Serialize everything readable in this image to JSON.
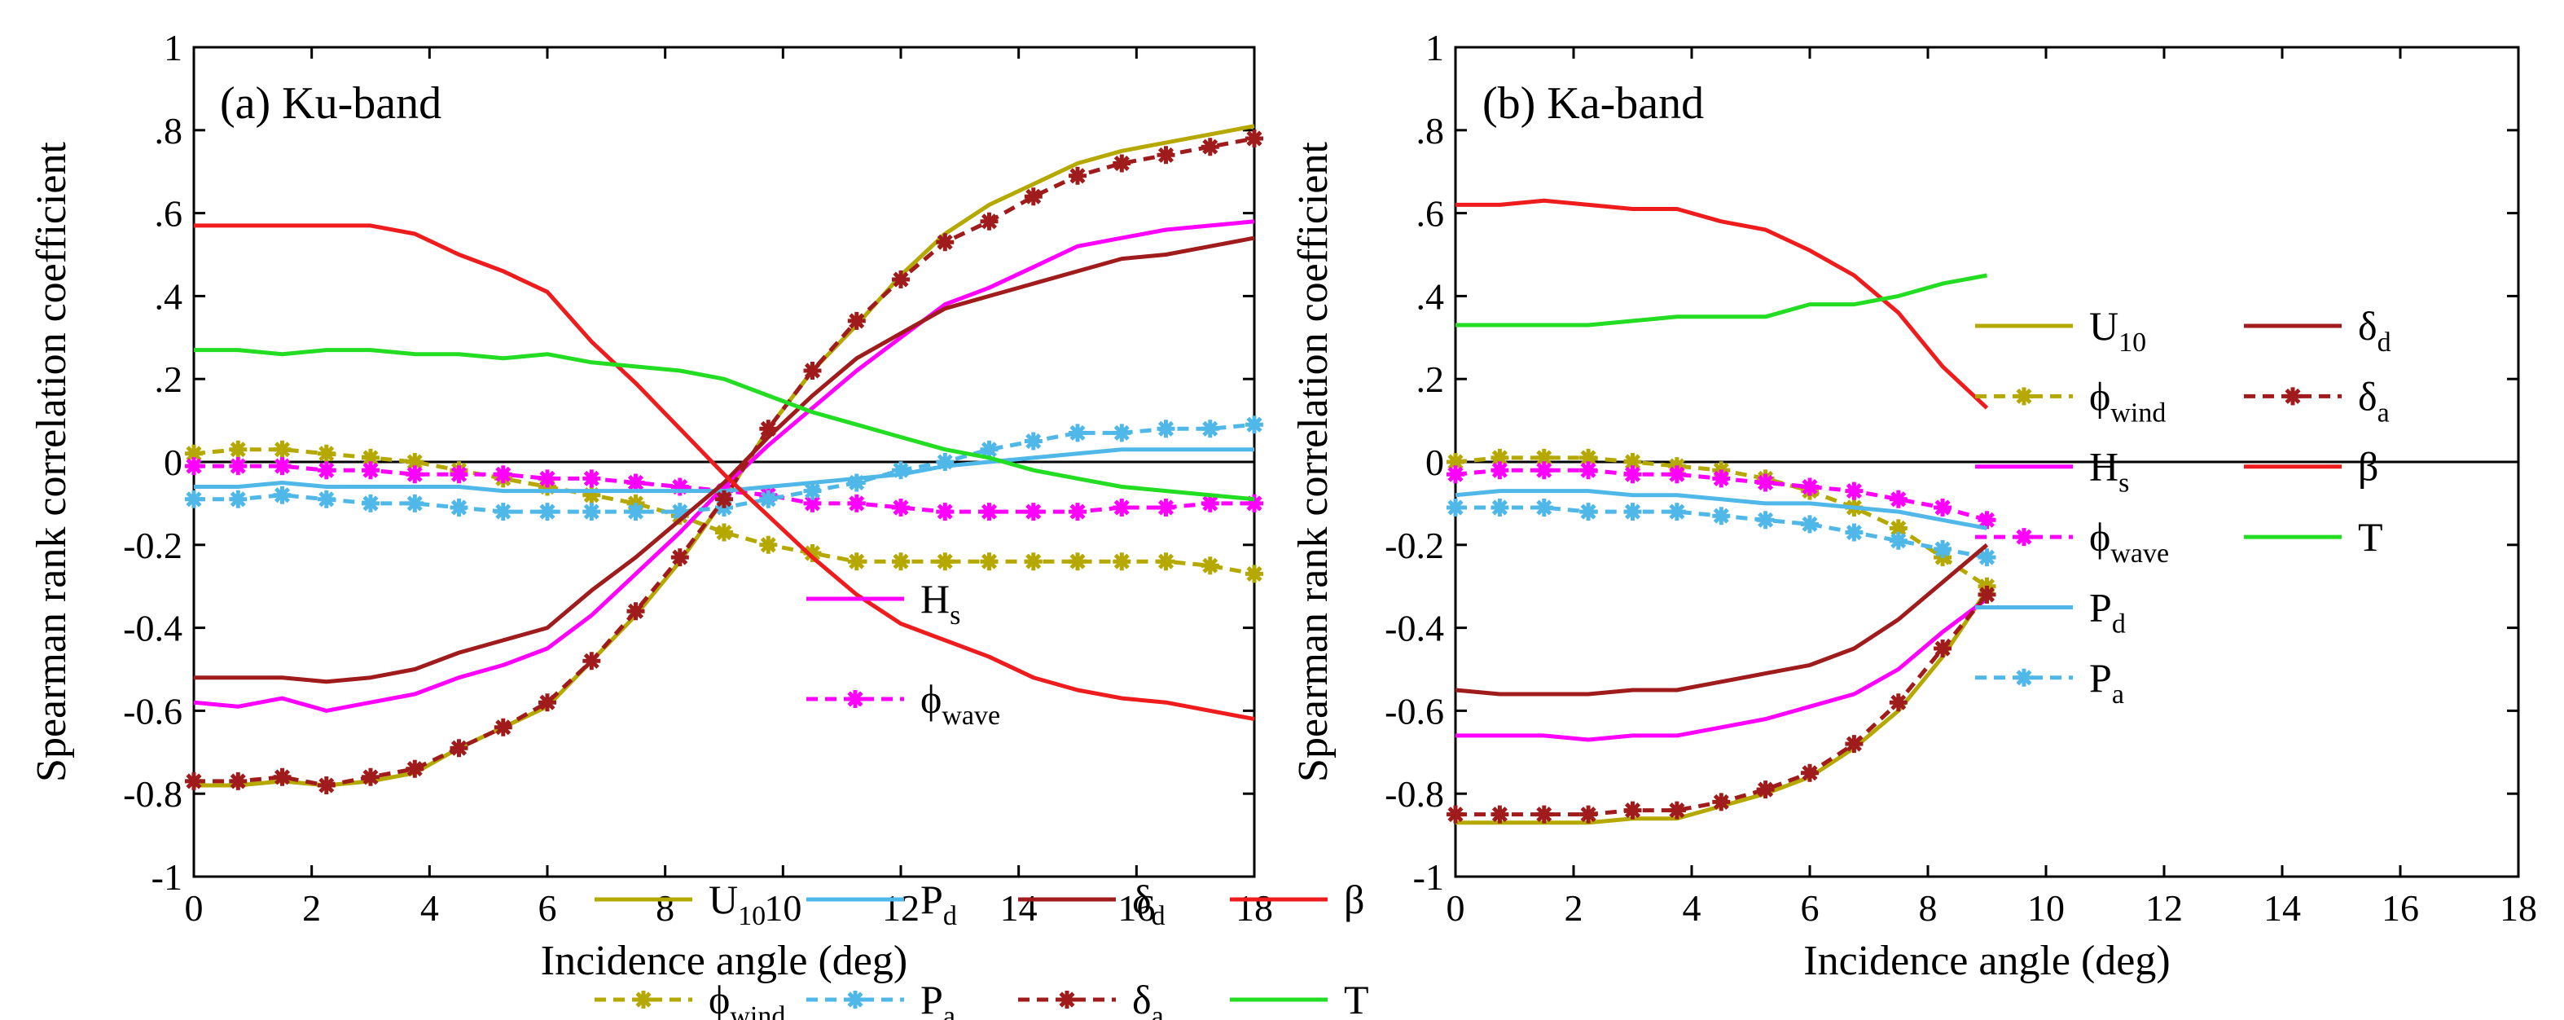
{
  "figure": {
    "ylabel": "Spearman rank correlation coefficient",
    "xlabel": "Incidence angle (deg)"
  },
  "chart_data": [
    {
      "type": "line",
      "title": "(a)  Ku-band",
      "xlabel": "Incidence angle (deg)",
      "ylabel": "Spearman rank correlation coefficient",
      "xlim": [
        0,
        18
      ],
      "ylim": [
        -1,
        1
      ],
      "xticks": [
        0,
        2,
        4,
        6,
        8,
        10,
        12,
        14,
        16,
        18
      ],
      "yticks": [
        -1,
        -0.8,
        -0.6,
        -0.4,
        -0.2,
        0,
        0.2,
        0.4,
        0.6,
        0.8,
        1
      ],
      "x": [
        0,
        0.75,
        1.5,
        2.25,
        3,
        3.75,
        4.5,
        5.25,
        6,
        6.75,
        7.5,
        8.25,
        9,
        9.75,
        10.5,
        11.25,
        12,
        12.75,
        13.5,
        14.25,
        15,
        15.75,
        16.5,
        17.25,
        18
      ],
      "series": [
        {
          "key": "U10",
          "name": "U",
          "sub": "10",
          "color": "#b5a800",
          "style": "solid",
          "marker": false,
          "values": [
            -0.78,
            -0.78,
            -0.77,
            -0.78,
            -0.77,
            -0.75,
            -0.69,
            -0.64,
            -0.59,
            -0.48,
            -0.37,
            -0.24,
            -0.09,
            0.08,
            0.22,
            0.33,
            0.45,
            0.55,
            0.62,
            0.67,
            0.72,
            0.75,
            0.77,
            0.79,
            0.81
          ]
        },
        {
          "key": "phi_wind",
          "name": "ϕ",
          "sub": "wind",
          "color": "#b5a800",
          "style": "dashed",
          "marker": true,
          "values": [
            0.02,
            0.03,
            0.03,
            0.02,
            0.01,
            0,
            -0.02,
            -0.04,
            -0.06,
            -0.08,
            -0.1,
            -0.13,
            -0.17,
            -0.2,
            -0.22,
            -0.24,
            -0.24,
            -0.24,
            -0.24,
            -0.24,
            -0.24,
            -0.24,
            -0.24,
            -0.25,
            -0.27
          ]
        },
        {
          "key": "Hs",
          "name": "H",
          "sub": "s",
          "color": "#ff00ff",
          "style": "solid",
          "marker": false,
          "values": [
            -0.58,
            -0.59,
            -0.57,
            -0.6,
            -0.58,
            -0.56,
            -0.52,
            -0.49,
            -0.45,
            -0.37,
            -0.27,
            -0.17,
            -0.06,
            0.04,
            0.13,
            0.22,
            0.3,
            0.38,
            0.42,
            0.47,
            0.52,
            0.54,
            0.56,
            0.57,
            0.58
          ]
        },
        {
          "key": "phi_wave",
          "name": "ϕ",
          "sub": "wave",
          "color": "#ff00ff",
          "style": "dashed",
          "marker": true,
          "values": [
            -0.01,
            -0.01,
            -0.01,
            -0.02,
            -0.02,
            -0.03,
            -0.03,
            -0.03,
            -0.04,
            -0.04,
            -0.05,
            -0.06,
            -0.07,
            -0.08,
            -0.1,
            -0.1,
            -0.11,
            -0.12,
            -0.12,
            -0.12,
            -0.12,
            -0.11,
            -0.11,
            -0.1,
            -0.1
          ]
        },
        {
          "key": "Pd",
          "name": "P",
          "sub": "d",
          "color": "#4fb8e8",
          "style": "solid",
          "marker": false,
          "values": [
            -0.06,
            -0.06,
            -0.05,
            -0.06,
            -0.06,
            -0.06,
            -0.06,
            -0.07,
            -0.07,
            -0.07,
            -0.07,
            -0.07,
            -0.07,
            -0.06,
            -0.05,
            -0.04,
            -0.03,
            -0.01,
            0,
            0.01,
            0.02,
            0.03,
            0.03,
            0.03,
            0.03
          ]
        },
        {
          "key": "Pa",
          "name": "P",
          "sub": "a",
          "color": "#4fb8e8",
          "style": "dashed",
          "marker": true,
          "values": [
            -0.09,
            -0.09,
            -0.08,
            -0.09,
            -0.1,
            -0.1,
            -0.11,
            -0.12,
            -0.12,
            -0.12,
            -0.12,
            -0.12,
            -0.11,
            -0.09,
            -0.07,
            -0.05,
            -0.02,
            0,
            0.03,
            0.05,
            0.07,
            0.07,
            0.08,
            0.08,
            0.09
          ]
        },
        {
          "key": "delta_d",
          "name": "δ",
          "sub": "d",
          "color": "#a01c1c",
          "style": "solid",
          "marker": false,
          "values": [
            -0.52,
            -0.52,
            -0.52,
            -0.53,
            -0.52,
            -0.5,
            -0.46,
            -0.43,
            -0.4,
            -0.31,
            -0.23,
            -0.14,
            -0.05,
            0.06,
            0.16,
            0.25,
            0.31,
            0.37,
            0.4,
            0.43,
            0.46,
            0.49,
            0.5,
            0.52,
            0.54
          ]
        },
        {
          "key": "delta_a",
          "name": "δ",
          "sub": "a",
          "color": "#a01c1c",
          "style": "dashed",
          "marker": true,
          "values": [
            -0.77,
            -0.77,
            -0.76,
            -0.78,
            -0.76,
            -0.74,
            -0.69,
            -0.64,
            -0.58,
            -0.48,
            -0.36,
            -0.23,
            -0.09,
            0.08,
            0.22,
            0.34,
            0.44,
            0.53,
            0.58,
            0.64,
            0.69,
            0.72,
            0.74,
            0.76,
            0.78
          ]
        },
        {
          "key": "beta",
          "name": "β",
          "sub": "",
          "color": "#ee1c1c",
          "style": "solid",
          "marker": false,
          "values": [
            0.57,
            0.57,
            0.57,
            0.57,
            0.57,
            0.55,
            0.5,
            0.46,
            0.41,
            0.29,
            0.19,
            0.08,
            -0.03,
            -0.13,
            -0.23,
            -0.32,
            -0.39,
            -0.43,
            -0.47,
            -0.52,
            -0.55,
            -0.57,
            -0.58,
            -0.6,
            -0.62
          ]
        },
        {
          "key": "T",
          "name": "T",
          "sub": "",
          "color": "#22dd22",
          "style": "solid",
          "marker": false,
          "values": [
            0.27,
            0.27,
            0.26,
            0.27,
            0.27,
            0.26,
            0.26,
            0.25,
            0.26,
            0.24,
            0.23,
            0.22,
            0.2,
            0.16,
            0.12,
            0.09,
            0.06,
            0.03,
            0.01,
            -0.02,
            -0.04,
            -0.06,
            -0.07,
            -0.08,
            -0.09
          ]
        }
      ],
      "legend": [
        {
          "series": "Hs",
          "col": 1,
          "row": 0
        },
        {
          "series": "phi_wave",
          "col": 1,
          "row": 1
        },
        {
          "series": "U10",
          "col": 0,
          "row": 3
        },
        {
          "series": "Pd",
          "col": 1,
          "row": 3
        },
        {
          "series": "delta_d",
          "col": 2,
          "row": 3
        },
        {
          "series": "beta",
          "col": 3,
          "row": 3
        },
        {
          "series": "phi_wind",
          "col": 0,
          "row": 4
        },
        {
          "series": "Pa",
          "col": 1,
          "row": 4
        },
        {
          "series": "delta_a",
          "col": 2,
          "row": 4
        },
        {
          "series": "T",
          "col": 3,
          "row": 4
        }
      ]
    },
    {
      "type": "line",
      "title": "(b)  Ka-band",
      "xlabel": "Incidence angle (deg)",
      "ylabel": "Spearman rank correlation coefficient",
      "xlim": [
        0,
        18
      ],
      "ylim": [
        -1,
        1
      ],
      "xticks": [
        0,
        2,
        4,
        6,
        8,
        10,
        12,
        14,
        16,
        18
      ],
      "yticks": [
        -1,
        -0.8,
        -0.6,
        -0.4,
        -0.2,
        0,
        0.2,
        0.4,
        0.6,
        0.8,
        1
      ],
      "x": [
        0,
        0.75,
        1.5,
        2.25,
        3,
        3.75,
        4.5,
        5.25,
        6,
        6.75,
        7.5,
        8.25,
        9
      ],
      "series": [
        {
          "key": "U10",
          "name": "U",
          "sub": "10",
          "color": "#b5a800",
          "style": "solid",
          "marker": false,
          "values": [
            -0.87,
            -0.87,
            -0.87,
            -0.87,
            -0.86,
            -0.86,
            -0.83,
            -0.8,
            -0.76,
            -0.69,
            -0.6,
            -0.47,
            -0.31
          ]
        },
        {
          "key": "phi_wind",
          "name": "ϕ",
          "sub": "wind",
          "color": "#b5a800",
          "style": "dashed",
          "marker": true,
          "values": [
            0,
            0.01,
            0.01,
            0.01,
            0,
            -0.01,
            -0.02,
            -0.04,
            -0.07,
            -0.11,
            -0.16,
            -0.23,
            -0.3
          ]
        },
        {
          "key": "Hs",
          "name": "H",
          "sub": "s",
          "color": "#ff00ff",
          "style": "solid",
          "marker": false,
          "values": [
            -0.66,
            -0.66,
            -0.66,
            -0.67,
            -0.66,
            -0.66,
            -0.64,
            -0.62,
            -0.59,
            -0.56,
            -0.5,
            -0.41,
            -0.33
          ]
        },
        {
          "key": "phi_wave",
          "name": "ϕ",
          "sub": "wave",
          "color": "#ff00ff",
          "style": "dashed",
          "marker": true,
          "values": [
            -0.03,
            -0.02,
            -0.02,
            -0.02,
            -0.03,
            -0.03,
            -0.04,
            -0.05,
            -0.06,
            -0.07,
            -0.09,
            -0.11,
            -0.14
          ]
        },
        {
          "key": "Pd",
          "name": "P",
          "sub": "d",
          "color": "#4fb8e8",
          "style": "solid",
          "marker": false,
          "values": [
            -0.08,
            -0.07,
            -0.07,
            -0.07,
            -0.08,
            -0.08,
            -0.09,
            -0.1,
            -0.1,
            -0.11,
            -0.12,
            -0.14,
            -0.16
          ]
        },
        {
          "key": "Pa",
          "name": "P",
          "sub": "a",
          "color": "#4fb8e8",
          "style": "dashed",
          "marker": true,
          "values": [
            -0.11,
            -0.11,
            -0.11,
            -0.12,
            -0.12,
            -0.12,
            -0.13,
            -0.14,
            -0.15,
            -0.17,
            -0.19,
            -0.21,
            -0.23
          ]
        },
        {
          "key": "delta_d",
          "name": "δ",
          "sub": "d",
          "color": "#a01c1c",
          "style": "solid",
          "marker": false,
          "values": [
            -0.55,
            -0.56,
            -0.56,
            -0.56,
            -0.55,
            -0.55,
            -0.53,
            -0.51,
            -0.49,
            -0.45,
            -0.38,
            -0.29,
            -0.2
          ]
        },
        {
          "key": "delta_a",
          "name": "δ",
          "sub": "a",
          "color": "#a01c1c",
          "style": "dashed",
          "marker": true,
          "values": [
            -0.85,
            -0.85,
            -0.85,
            -0.85,
            -0.84,
            -0.84,
            -0.82,
            -0.79,
            -0.75,
            -0.68,
            -0.58,
            -0.45,
            -0.32
          ]
        },
        {
          "key": "beta",
          "name": "β",
          "sub": "",
          "color": "#ee1c1c",
          "style": "solid",
          "marker": false,
          "values": [
            0.62,
            0.62,
            0.63,
            0.62,
            0.61,
            0.61,
            0.58,
            0.56,
            0.51,
            0.45,
            0.36,
            0.23,
            0.13
          ]
        },
        {
          "key": "T",
          "name": "T",
          "sub": "",
          "color": "#22dd22",
          "style": "solid",
          "marker": false,
          "values": [
            0.33,
            0.33,
            0.33,
            0.33,
            0.34,
            0.35,
            0.35,
            0.35,
            0.38,
            0.38,
            0.4,
            0.43,
            0.45
          ]
        }
      ],
      "legend": [
        {
          "series": "U10",
          "col": 0,
          "row": 0
        },
        {
          "series": "delta_d",
          "col": 1,
          "row": 0
        },
        {
          "series": "phi_wind",
          "col": 0,
          "row": 1
        },
        {
          "series": "delta_a",
          "col": 1,
          "row": 1
        },
        {
          "series": "Hs",
          "col": 0,
          "row": 2
        },
        {
          "series": "beta",
          "col": 1,
          "row": 2
        },
        {
          "series": "phi_wave",
          "col": 0,
          "row": 3
        },
        {
          "series": "T",
          "col": 1,
          "row": 3
        },
        {
          "series": "Pd",
          "col": 0,
          "row": 4
        },
        {
          "series": "Pa",
          "col": 0,
          "row": 5
        }
      ]
    }
  ]
}
